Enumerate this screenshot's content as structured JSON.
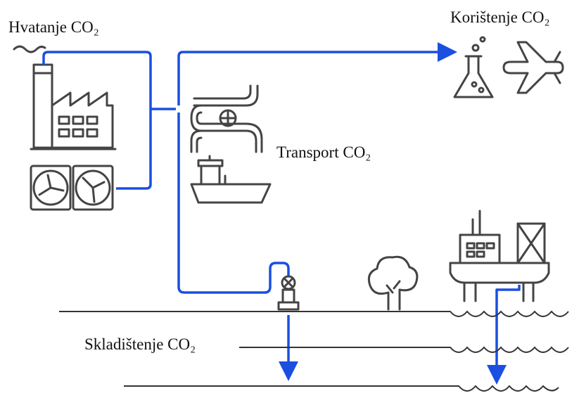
{
  "labels": {
    "capture": "Hvatanje CO₂",
    "utilization": "Korištenje CO₂",
    "transport": "Transport CO₂",
    "storage": "Skladištenje CO₂"
  }
}
